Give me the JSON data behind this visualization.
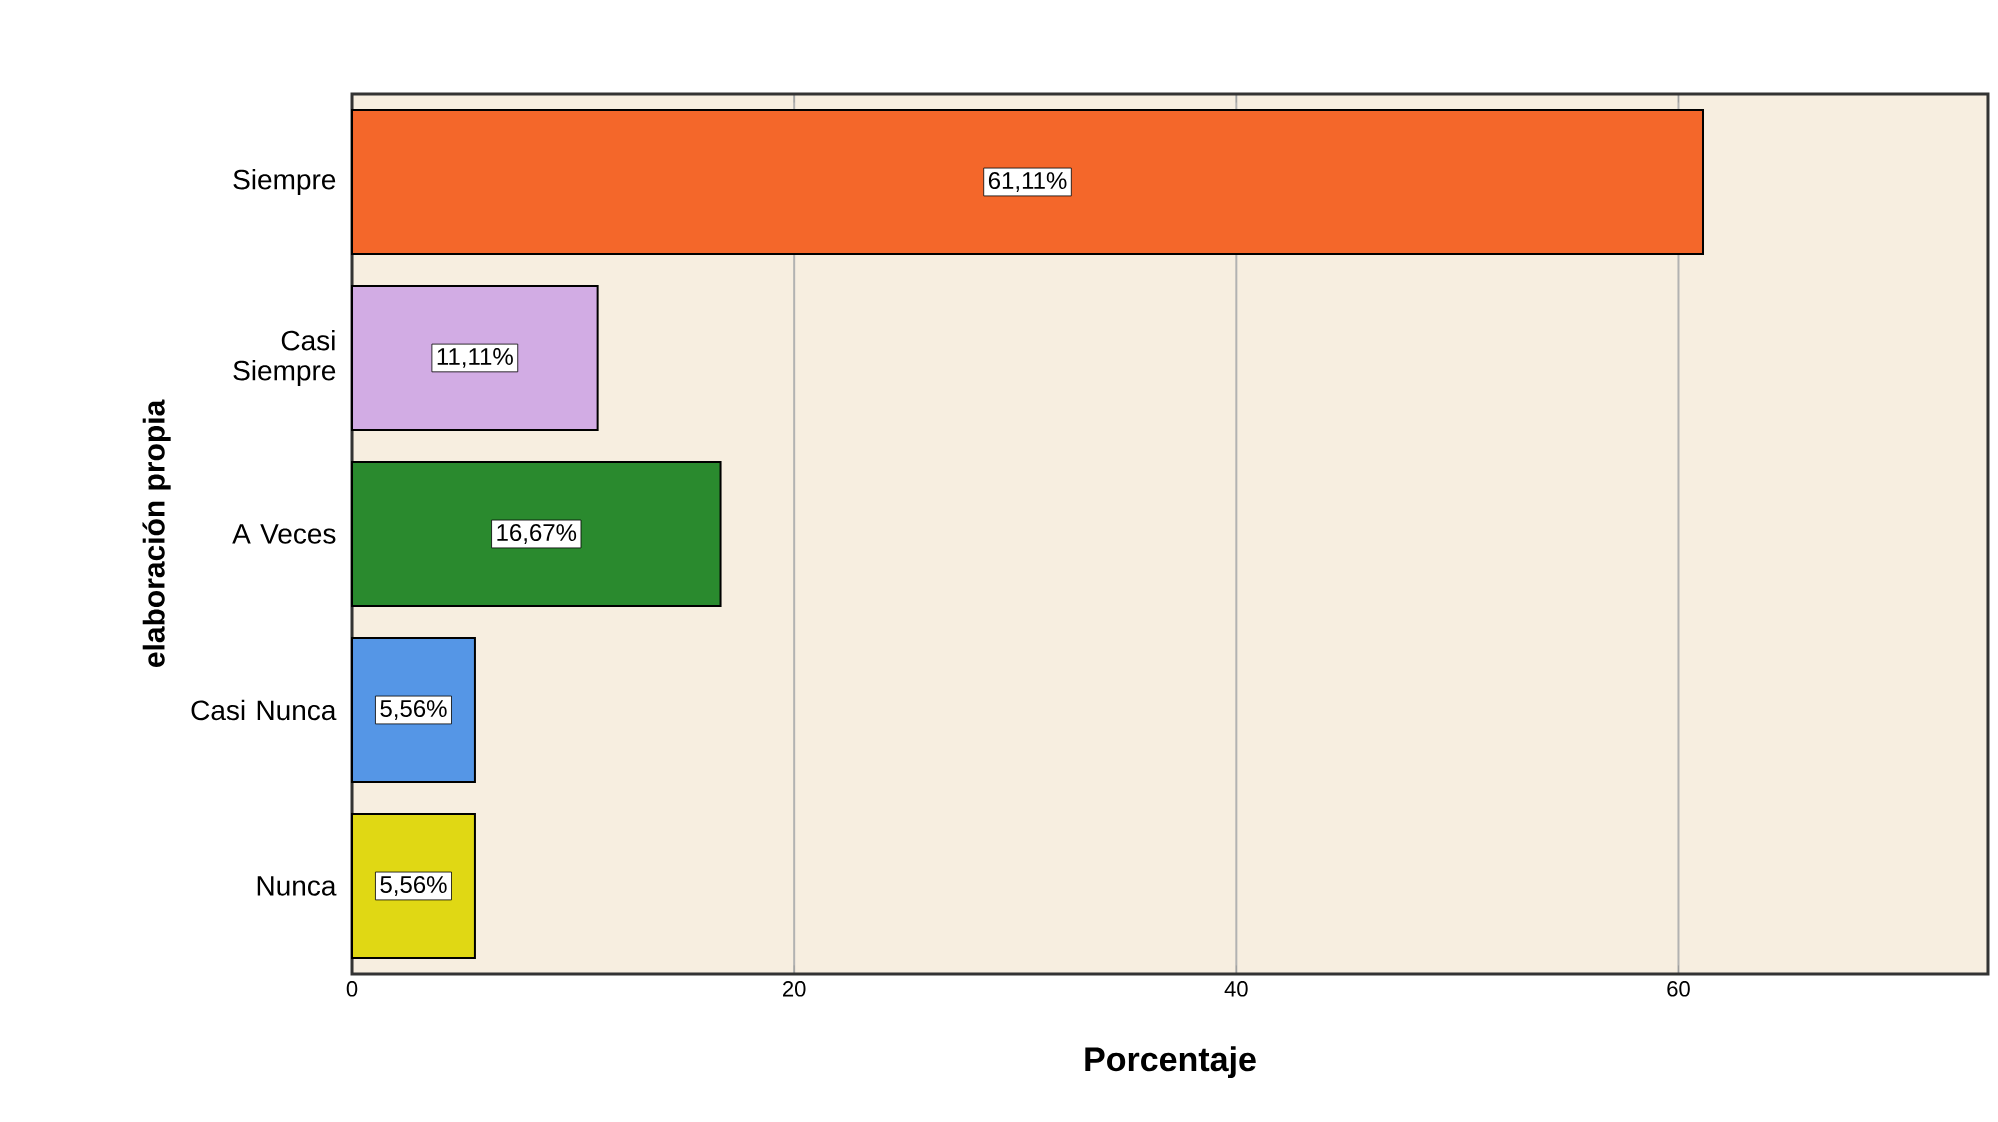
{
  "chart_data": {
    "type": "bar",
    "orientation": "horizontal",
    "xlabel": "Porcentaje",
    "ylabel": "elaboración propia",
    "categories": [
      "Siempre",
      "Casi Siempre",
      "A Veces",
      "Casi Nunca",
      "Nunca"
    ],
    "values": [
      61.11,
      11.11,
      16.67,
      5.56,
      5.56
    ],
    "colors": [
      "#f4672a",
      "#d2ace4",
      "#2a8a2e",
      "#5596e6",
      "#e0d814"
    ],
    "value_labels": [
      "61,11%",
      "11,11%",
      "16,67%",
      "5,56%",
      "5,56%"
    ],
    "xlim": [
      0,
      74
    ],
    "xticks": [
      0,
      20,
      40,
      60
    ],
    "grid": "x"
  }
}
